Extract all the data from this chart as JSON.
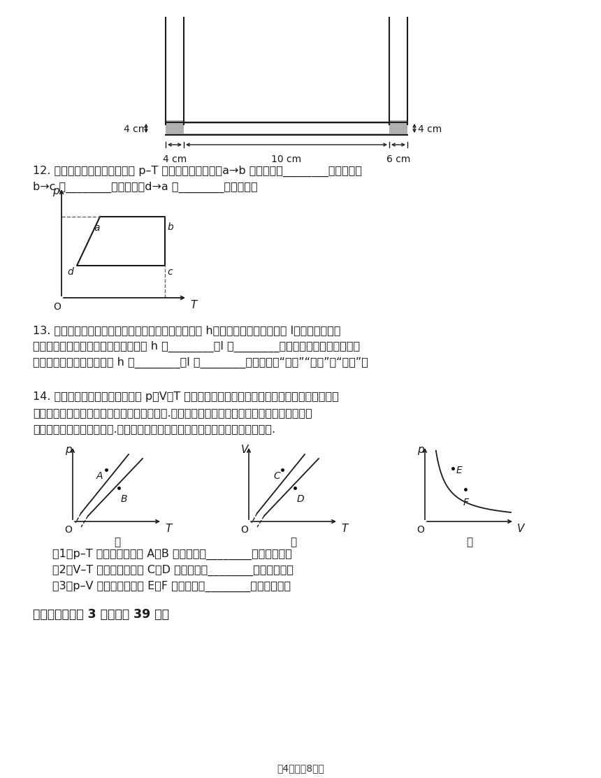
{
  "bg_color": "#f5f5f5",
  "text_color": "#1a1a1a",
  "q12_text": "12. 如图所示为一定质量气体的 p–T 图线，从图线可知，a→b 气体状态是________变化过程，",
  "q12_text2": "b→c 是________变化过程，d→a 是________变化过程。",
  "q13_text": "13. 一玻璃管竖直插在液体中，管内液面比管外液面高 h，顶端封闭空气柱长度为 l，若将玻璃管偏",
  "q13_text2": "转一点而保持露出液面的管长不变，则 h 将________，l 将________；若将玻璃管偏转一点而保",
  "q13_text3": "持露出液面的高度不变，则 h 将________，l 将________。（均选填“变大”“变小”或“不变”）",
  "q14_text": "14. 对于一定质量的理想气体，以 p、V、T 三个状态参量中的两个为坐标轴建立直角坐标系，在",
  "q14_text2": "坐标系上描点能直观地表示这两个参量的数値.如图所示，三个坐标系中，两个点都表示相同质",
  "q14_text3": "量某种理想气体的两个状态.根据坐标系中不同点的位置来比较第三个参量的大小.",
  "q14_sub1": "（1）p–T 图象（图甲）中 A、B 两个状态，________状态体积小；",
  "q14_sub2": "（2）V–T 图象（图乙）中 C、D 两个状态，________状态压强小；",
  "q14_sub3": "（3）p–V 图象（图丙）中 E、F 两个状态，________状态温度低。",
  "section3_text": "三、解答题（八3 小题；八39 分）",
  "footer_text": "第4页（八8页）"
}
